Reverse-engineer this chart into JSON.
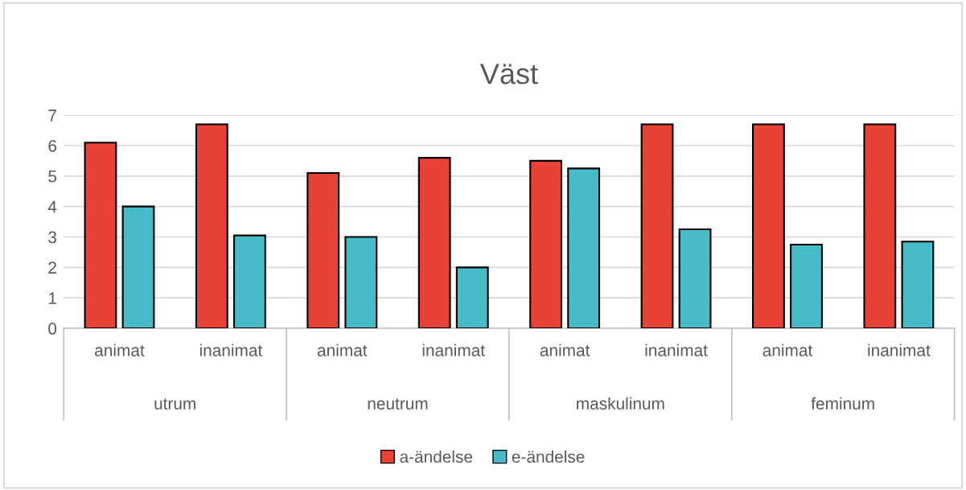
{
  "chart_data": {
    "type": "bar",
    "title": "Väst",
    "categories": [
      "animat",
      "inanimat",
      "animat",
      "inanimat",
      "animat",
      "inanimat",
      "animat",
      "inanimat"
    ],
    "annotations": [
      "utrum",
      "neutrum",
      "maskulinum",
      "feminum"
    ],
    "series": [
      {
        "name": "a-ändelse",
        "color": "#e84135",
        "values": [
          6.1,
          6.7,
          5.1,
          5.6,
          5.5,
          6.7,
          6.7,
          6.7
        ]
      },
      {
        "name": "e-ändelse",
        "color": "#47bcc8",
        "values": [
          4.0,
          3.05,
          3.0,
          2.0,
          5.25,
          3.25,
          2.75,
          2.85
        ]
      }
    ],
    "ylim": [
      0,
      7
    ],
    "yticks": [
      0,
      1,
      2,
      3,
      4,
      5,
      6,
      7
    ],
    "grid": "y",
    "legend": "bottom"
  }
}
